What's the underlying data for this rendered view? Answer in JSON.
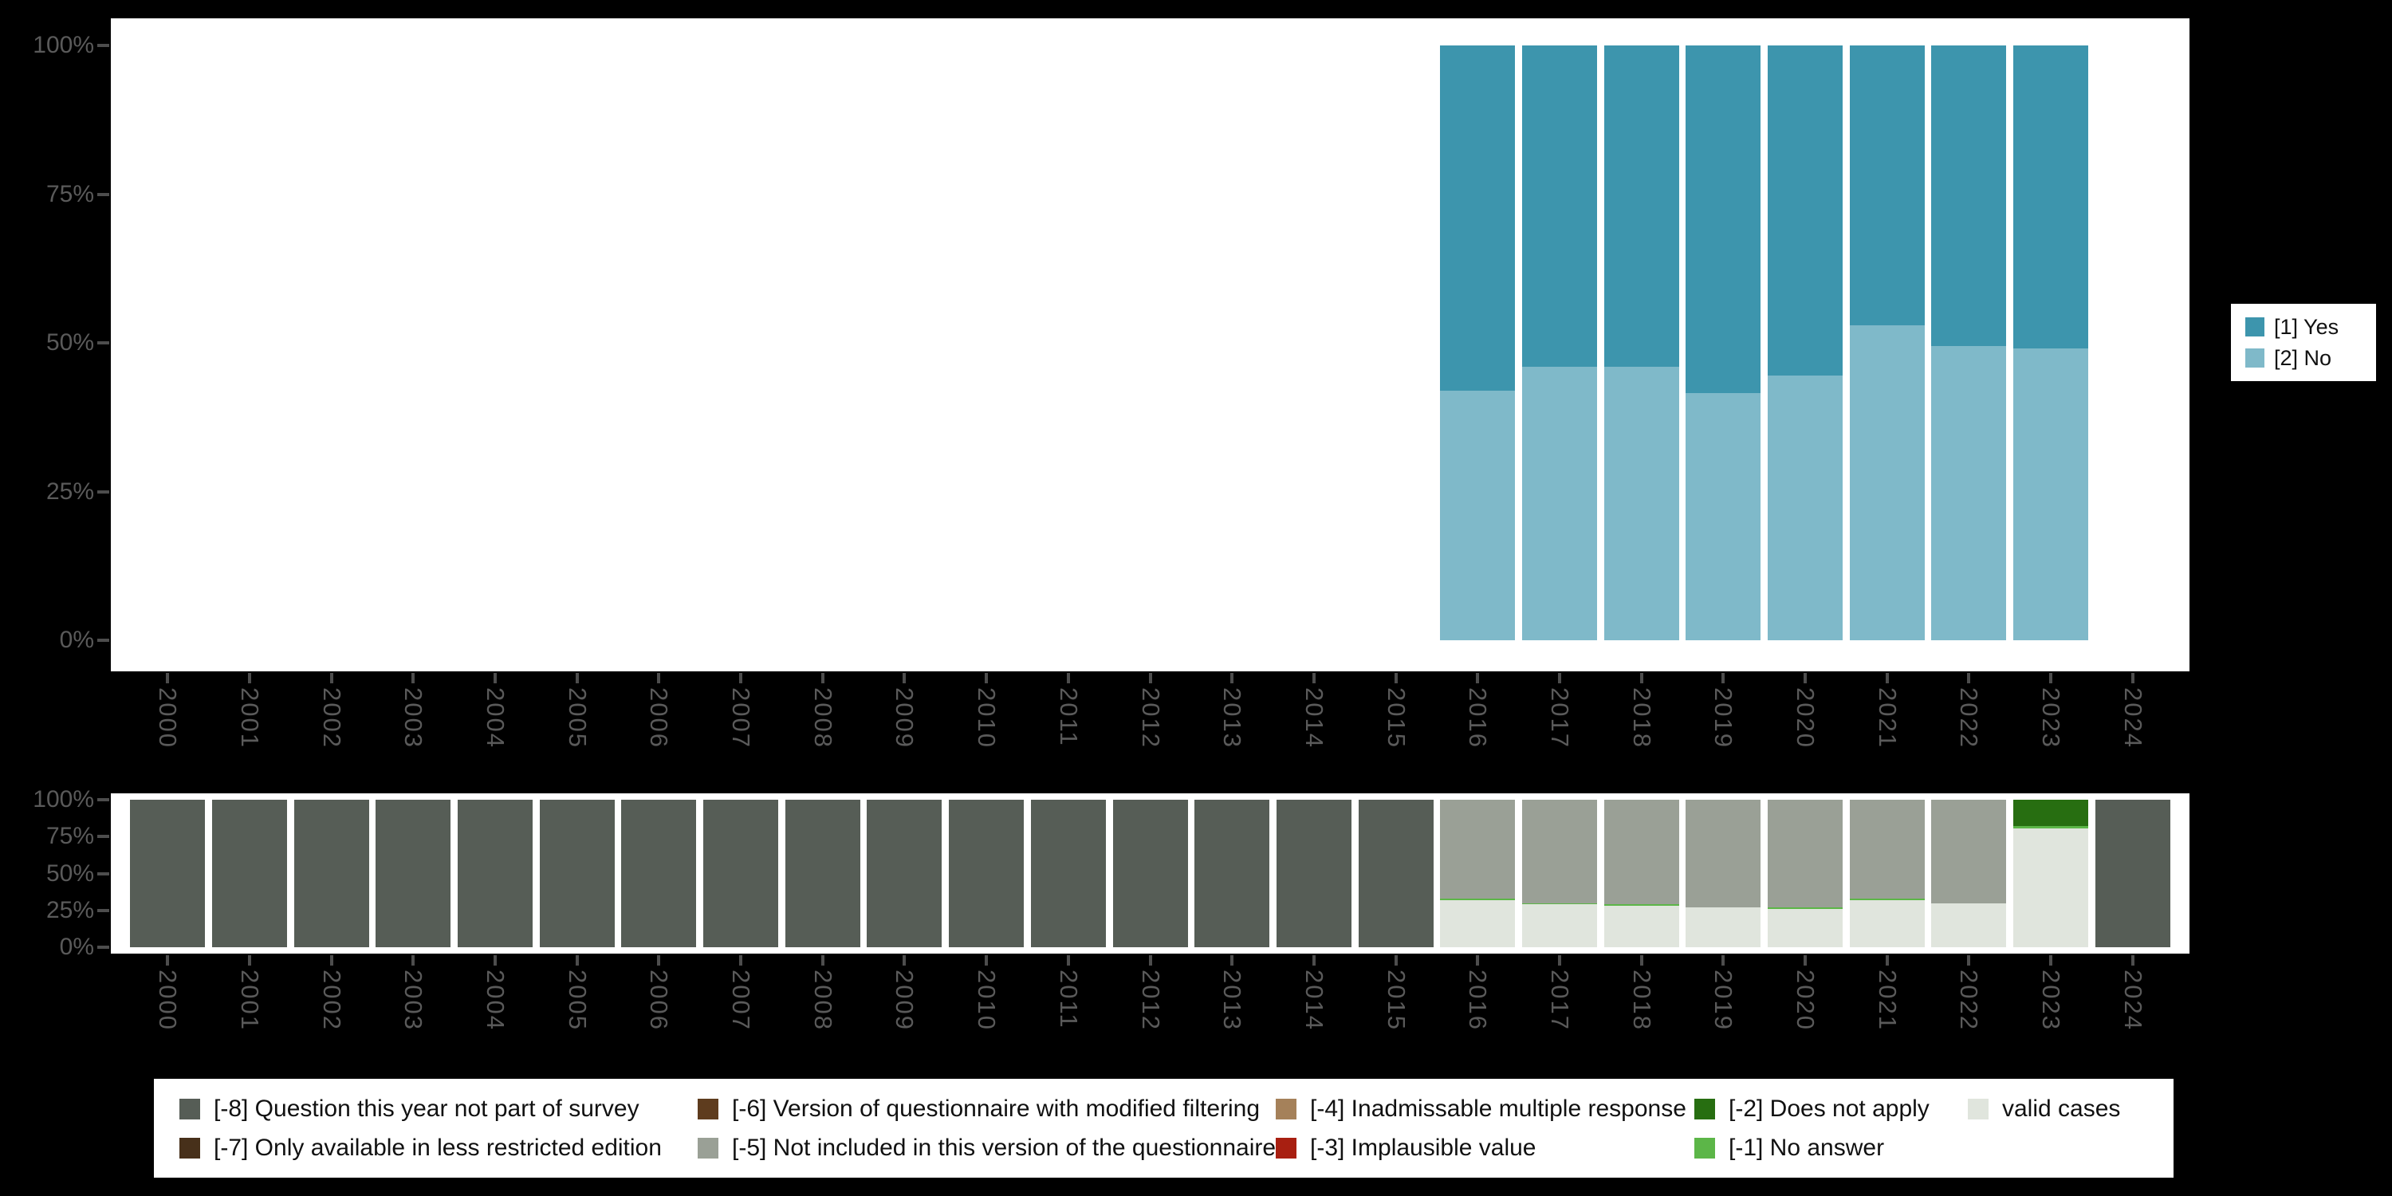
{
  "page": {
    "background": "#000000"
  },
  "axis": {
    "tick_color": "#4d4d4d",
    "label_color": "#5a5a5a"
  },
  "chart_data": [
    {
      "id": "answers",
      "type": "bar",
      "stacked": true,
      "orientation": "vertical",
      "title": "",
      "xlabel": "",
      "ylabel": "",
      "ylim": [
        0,
        100
      ],
      "grid": false,
      "legend_position": "right",
      "yticks": [
        "100%",
        "75%",
        "50%",
        "25%",
        "0%"
      ],
      "categories": [
        "2000",
        "2001",
        "2002",
        "2003",
        "2004",
        "2005",
        "2006",
        "2007",
        "2008",
        "2009",
        "2010",
        "2011",
        "2012",
        "2013",
        "2014",
        "2015",
        "2016",
        "2017",
        "2018",
        "2019",
        "2020",
        "2021",
        "2022",
        "2023",
        "2024"
      ],
      "series": [
        {
          "name": "[1] Yes",
          "color": "#3d95ad",
          "values": [
            0,
            0,
            0,
            0,
            0,
            0,
            0,
            0,
            0,
            0,
            0,
            0,
            0,
            0,
            0,
            0,
            58,
            54,
            54,
            58.5,
            55.5,
            47,
            50.5,
            51,
            0
          ]
        },
        {
          "name": "[2] No",
          "color": "#7fb9c9",
          "values": [
            0,
            0,
            0,
            0,
            0,
            0,
            0,
            0,
            0,
            0,
            0,
            0,
            0,
            0,
            0,
            0,
            42,
            46,
            46,
            41.5,
            44.5,
            53,
            49.5,
            49,
            0
          ]
        }
      ]
    },
    {
      "id": "missings",
      "type": "bar",
      "stacked": true,
      "orientation": "vertical",
      "title": "",
      "xlabel": "",
      "ylabel": "",
      "ylim": [
        0,
        100
      ],
      "grid": false,
      "legend_position": "bottom",
      "yticks": [
        "100%",
        "75%",
        "50%",
        "25%",
        "0%"
      ],
      "categories": [
        "2000",
        "2001",
        "2002",
        "2003",
        "2004",
        "2005",
        "2006",
        "2007",
        "2008",
        "2009",
        "2010",
        "2011",
        "2012",
        "2013",
        "2014",
        "2015",
        "2016",
        "2017",
        "2018",
        "2019",
        "2020",
        "2021",
        "2022",
        "2023",
        "2024"
      ],
      "series": [
        {
          "name": "[-8] Question this year not part of survey",
          "color": "#565d56",
          "values": [
            100,
            100,
            100,
            100,
            100,
            100,
            100,
            100,
            100,
            100,
            100,
            100,
            100,
            100,
            100,
            100,
            0,
            0,
            0,
            0,
            0,
            0,
            0,
            0,
            100
          ]
        },
        {
          "name": "[-7] Only available in less restricted edition",
          "color": "#47301a",
          "values": [
            0,
            0,
            0,
            0,
            0,
            0,
            0,
            0,
            0,
            0,
            0,
            0,
            0,
            0,
            0,
            0,
            0,
            0,
            0,
            0,
            0,
            0,
            0,
            0,
            0
          ]
        },
        {
          "name": "[-6] Version of questionnaire with modified filtering",
          "color": "#5e3c1e",
          "values": [
            0,
            0,
            0,
            0,
            0,
            0,
            0,
            0,
            0,
            0,
            0,
            0,
            0,
            0,
            0,
            0,
            0,
            0,
            0,
            0,
            0,
            0,
            0,
            0,
            0
          ]
        },
        {
          "name": "[-5] Not included in this version of the questionnaire",
          "color": "#9aa096",
          "values": [
            0,
            0,
            0,
            0,
            0,
            0,
            0,
            0,
            0,
            0,
            0,
            0,
            0,
            0,
            0,
            0,
            67,
            70,
            71,
            73,
            73,
            67,
            70,
            0,
            0
          ]
        },
        {
          "name": "[-4] Inadmissable multiple response",
          "color": "#a5815a",
          "values": [
            0,
            0,
            0,
            0,
            0,
            0,
            0,
            0,
            0,
            0,
            0,
            0,
            0,
            0,
            0,
            0,
            0,
            0,
            0,
            0,
            0,
            0,
            0,
            0,
            0
          ]
        },
        {
          "name": "[-3] Implausible value",
          "color": "#a81f11",
          "values": [
            0,
            0,
            0,
            0,
            0,
            0,
            0,
            0,
            0,
            0,
            0,
            0,
            0,
            0,
            0,
            0,
            0,
            0,
            0,
            0,
            0,
            0,
            0,
            0,
            0
          ]
        },
        {
          "name": "[-2] Does not apply",
          "color": "#276e11",
          "values": [
            0,
            0,
            0,
            0,
            0,
            0,
            0,
            0,
            0,
            0,
            0,
            0,
            0,
            0,
            0,
            0,
            0,
            0,
            0,
            0,
            0,
            0,
            0,
            18,
            0
          ]
        },
        {
          "name": "[-1] No answer",
          "color": "#5cb648",
          "values": [
            0,
            0,
            0,
            0,
            0,
            0,
            0,
            0,
            0,
            0,
            0,
            0,
            0,
            0,
            0,
            0,
            1,
            1,
            1,
            0,
            1,
            1,
            0,
            1.5,
            0
          ]
        },
        {
          "name": "valid cases",
          "color": "#e0e5dd",
          "values": [
            0,
            0,
            0,
            0,
            0,
            0,
            0,
            0,
            0,
            0,
            0,
            0,
            0,
            0,
            0,
            0,
            32,
            29,
            28,
            27,
            26,
            32,
            30,
            80.5,
            0
          ]
        }
      ]
    }
  ]
}
